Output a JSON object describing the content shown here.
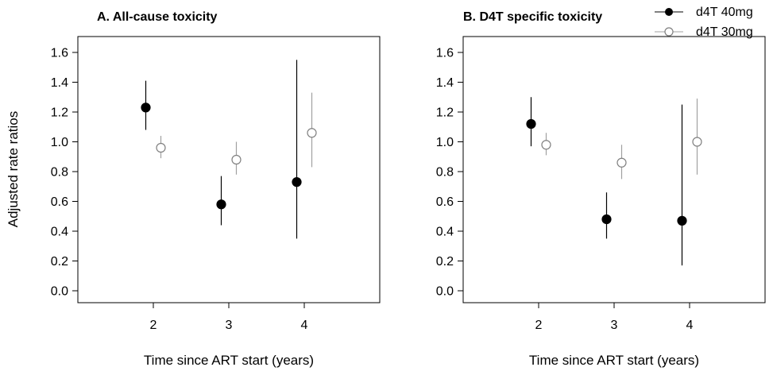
{
  "ylabel": "Adjusted rate ratios",
  "legend": {
    "placement": "top-right",
    "entries": [
      {
        "name": "d4T 40mg",
        "marker": "filled-circle",
        "color": "#000000",
        "line_color": "#000000"
      },
      {
        "name": "d4T 30mg",
        "marker": "open-circle",
        "color": "#808080",
        "line_color": "#a0a0a0"
      }
    ]
  },
  "chart_data": [
    {
      "type": "scatter",
      "title": "A. All-cause toxicity",
      "xlabel": "Time since ART start (years)",
      "ylabel": "Adjusted rate ratios",
      "x": [
        2,
        3,
        4
      ],
      "xlim": [
        1,
        5
      ],
      "ylim": [
        0,
        1.6
      ],
      "yticks": [
        "0.0",
        "0.2",
        "0.4",
        "0.6",
        "0.8",
        "1.0",
        "1.2",
        "1.4",
        "1.6"
      ],
      "xticks": [
        "2",
        "3",
        "4"
      ],
      "series": [
        {
          "name": "d4T 40mg",
          "values": [
            1.23,
            0.58,
            0.73
          ],
          "lower": [
            1.08,
            0.44,
            0.35
          ],
          "upper": [
            1.41,
            0.77,
            1.55
          ]
        },
        {
          "name": "d4T 30mg",
          "values": [
            0.96,
            0.88,
            1.06
          ],
          "lower": [
            0.89,
            0.78,
            0.83
          ],
          "upper": [
            1.04,
            1.0,
            1.33
          ]
        }
      ]
    },
    {
      "type": "scatter",
      "title": "B. D4T specific toxicity",
      "xlabel": "Time since ART start (years)",
      "ylabel": "",
      "x": [
        2,
        3,
        4
      ],
      "xlim": [
        1,
        5
      ],
      "ylim": [
        0,
        1.6
      ],
      "yticks": [
        "0.0",
        "0.2",
        "0.4",
        "0.6",
        "0.8",
        "1.0",
        "1.2",
        "1.4",
        "1.6"
      ],
      "xticks": [
        "2",
        "3",
        "4"
      ],
      "series": [
        {
          "name": "d4T 40mg",
          "values": [
            1.12,
            0.48,
            0.47
          ],
          "lower": [
            0.97,
            0.35,
            0.17
          ],
          "upper": [
            1.3,
            0.66,
            1.25
          ]
        },
        {
          "name": "d4T 30mg",
          "values": [
            0.98,
            0.86,
            1.0
          ],
          "lower": [
            0.91,
            0.75,
            0.78
          ],
          "upper": [
            1.06,
            0.98,
            1.29
          ]
        }
      ]
    }
  ]
}
